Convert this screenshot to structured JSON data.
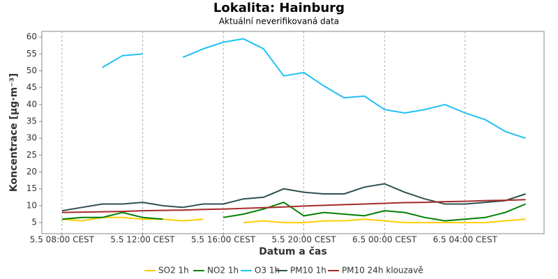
{
  "chart_data": {
    "type": "line",
    "title": "Lokalita: Hainburg",
    "subtitle": "Aktuální neverifikovaná data",
    "x_label": "Datum a čas",
    "y_label": "Koncentrace [µg·m⁻³]",
    "x": [
      "5.5 08:00",
      "5.5 09:00",
      "5.5 10:00",
      "5.5 11:00",
      "5.5 12:00",
      "5.5 13:00",
      "5.5 14:00",
      "5.5 15:00",
      "5.5 16:00",
      "5.5 17:00",
      "5.5 18:00",
      "5.5 19:00",
      "5.5 20:00",
      "5.5 21:00",
      "5.5 22:00",
      "5.5 23:00",
      "6.5 00:00",
      "6.5 01:00",
      "6.5 02:00",
      "6.5 03:00",
      "6.5 04:00",
      "6.5 05:00",
      "6.5 06:00",
      "6.5 07:00"
    ],
    "xlim": [
      "5.5 07:00",
      "6.5 07:55"
    ],
    "xticks": [
      {
        "value": "5.5 08:00",
        "label": "5.5 08:00 CEST"
      },
      {
        "value": "5.5 12:00",
        "label": "5.5 12:00 CEST"
      },
      {
        "value": "5.5 16:00",
        "label": "5.5 16:00 CEST"
      },
      {
        "value": "5.5 20:00",
        "label": "5.5 20:00 CEST"
      },
      {
        "value": "6.5 00:00",
        "label": "6.5 00:00 CEST"
      },
      {
        "value": "6.5 04:00",
        "label": "6.5 04:00 CEST"
      }
    ],
    "ylim": [
      1.7,
      61.7
    ],
    "yticks": [
      5,
      10,
      15,
      20,
      25,
      30,
      35,
      40,
      45,
      50,
      55,
      60
    ],
    "grid": true,
    "legend": "bottom",
    "series": [
      {
        "name": "SO2 1h",
        "color": "#ffcc00",
        "values": [
          6,
          5.5,
          6.5,
          6.5,
          6,
          6,
          5.5,
          6,
          null,
          5,
          5.5,
          5,
          5,
          5.5,
          5.5,
          6,
          5.5,
          5,
          5,
          5,
          5,
          5,
          5.5,
          6
        ]
      },
      {
        "name": "NO2 1h",
        "color": "#008000",
        "values": [
          6,
          6.5,
          6.5,
          8,
          6.5,
          6,
          null,
          null,
          6.5,
          7.5,
          9,
          11,
          7,
          8,
          7.5,
          7,
          8.5,
          8,
          6.5,
          5.5,
          6,
          6.5,
          8,
          10.5
        ]
      },
      {
        "name": "O3 1h",
        "color": "#1ec0f5",
        "values": [
          null,
          null,
          51,
          54.5,
          55,
          null,
          54,
          56.5,
          58.5,
          59.5,
          56.5,
          48.5,
          49.5,
          45.5,
          42,
          42.5,
          38.5,
          37.5,
          38.5,
          40,
          37.5,
          35.5,
          32,
          30
        ]
      },
      {
        "name": "PM10 1h",
        "color": "#2f4f4f",
        "values": [
          8.5,
          9.5,
          10.5,
          10.5,
          11,
          10,
          9.5,
          10.5,
          10.5,
          12,
          12.5,
          15,
          14,
          13.5,
          13.5,
          15.5,
          16.5,
          14,
          12,
          10.5,
          10.5,
          11,
          11.5,
          13.5
        ]
      },
      {
        "name": "PM10 24h klouzavě",
        "color": "#a52a2a",
        "values": [
          8.0,
          8.1,
          8.2,
          8.3,
          8.5,
          8.6,
          8.7,
          8.9,
          9.0,
          9.2,
          9.4,
          9.6,
          9.9,
          10.1,
          10.3,
          10.5,
          10.7,
          10.9,
          11.0,
          11.2,
          11.3,
          11.5,
          11.6,
          11.8
        ]
      }
    ]
  }
}
